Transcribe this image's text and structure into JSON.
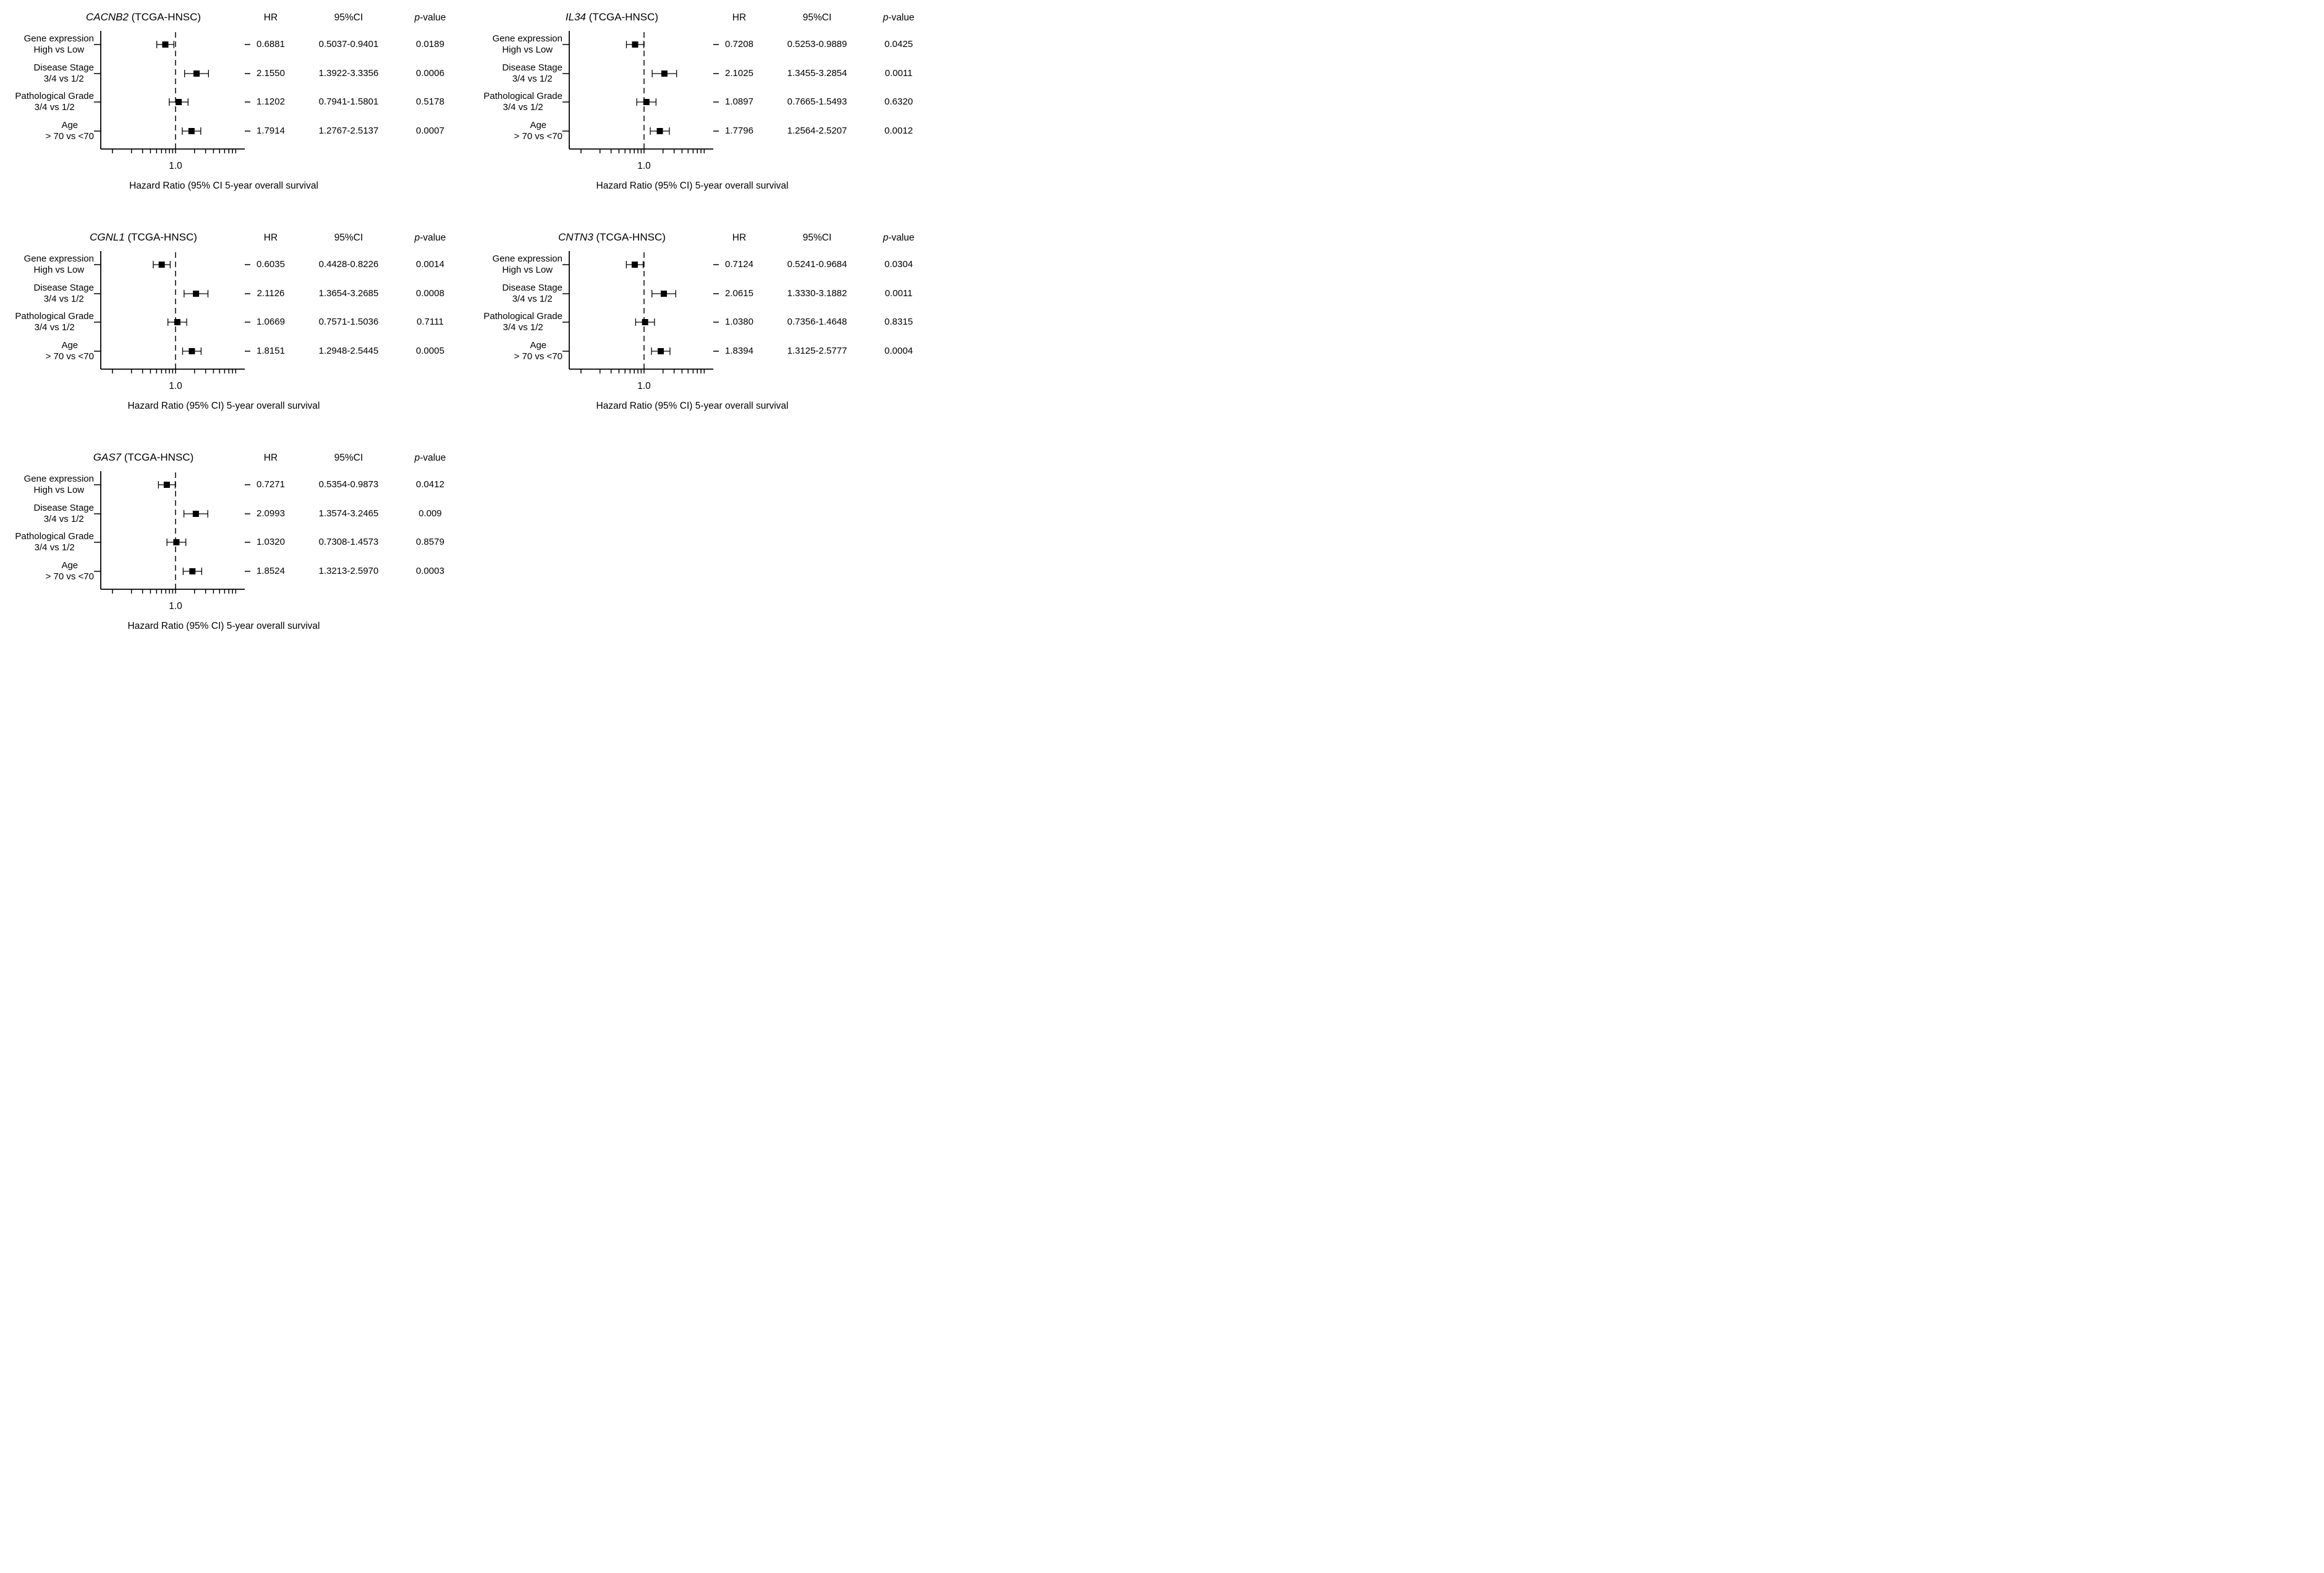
{
  "figure": {
    "background_color": "#ffffff",
    "text_color": "#000000",
    "line_color": "#000000"
  },
  "chart_data": {
    "type": "scatter",
    "subtype": "forest-plot-grid",
    "cohort": "TCGA-HNSC",
    "col_headers": {
      "hr": "HR",
      "ci": "95%CI",
      "p_italic": "p",
      "p_rest": "-value"
    },
    "categories": [
      "Gene expression High vs Low",
      "Disease Stage 3/4 vs 1/2",
      "Pathological Grade 3/4 vs 1/2",
      "Age > 70 vs <70"
    ],
    "categories_lines": [
      [
        "Gene expression",
        "High vs Low"
      ],
      [
        "Disease Stage",
        "3/4 vs 1/2"
      ],
      [
        "Pathological Grade",
        "3/4 vs 1/2"
      ],
      [
        "Age",
        "> 70 vs <70"
      ]
    ],
    "x_axis": {
      "scale": "log",
      "ref_line": 1.0,
      "ref_label": "1.0",
      "minor_ticks": [
        0.1,
        0.2,
        0.3,
        0.4,
        0.5,
        0.6,
        0.7,
        0.8,
        0.9,
        1,
        2,
        3,
        4,
        5,
        6,
        7,
        8,
        9
      ],
      "range_approx": [
        0.065,
        12.5
      ],
      "grid": false
    },
    "panels": [
      {
        "gene": "CACNB2",
        "title_rest": " (TCGA-HNSC)",
        "xlabel": "Hazard Ratio (95% CI 5-year overall survival",
        "grid": {
          "row": 0,
          "col": 0
        },
        "rows": [
          {
            "hr": 0.6881,
            "ci_low": 0.5037,
            "ci_high": 0.9401,
            "hr_text": "0.6881",
            "ci_text": "0.5037-0.9401",
            "p_text": "0.0189"
          },
          {
            "hr": 2.155,
            "ci_low": 1.3922,
            "ci_high": 3.3356,
            "hr_text": "2.1550",
            "ci_text": "1.3922-3.3356",
            "p_text": "0.0006"
          },
          {
            "hr": 1.1202,
            "ci_low": 0.7941,
            "ci_high": 1.5801,
            "hr_text": "1.1202",
            "ci_text": "0.7941-1.5801",
            "p_text": "0.5178"
          },
          {
            "hr": 1.7914,
            "ci_low": 1.2767,
            "ci_high": 2.5137,
            "hr_text": "1.7914",
            "ci_text": "1.2767-2.5137",
            "p_text": "0.0007"
          }
        ]
      },
      {
        "gene": "IL34",
        "title_rest": " (TCGA-HNSC)",
        "xlabel": "Hazard Ratio (95% CI) 5-year overall survival",
        "grid": {
          "row": 0,
          "col": 1
        },
        "rows": [
          {
            "hr": 0.7208,
            "ci_low": 0.5253,
            "ci_high": 0.9889,
            "hr_text": "0.7208",
            "ci_text": "0.5253-0.9889",
            "p_text": "0.0425"
          },
          {
            "hr": 2.1025,
            "ci_low": 1.3455,
            "ci_high": 3.2854,
            "hr_text": "2.1025",
            "ci_text": "1.3455-3.2854",
            "p_text": "0.0011"
          },
          {
            "hr": 1.0897,
            "ci_low": 0.7665,
            "ci_high": 1.5493,
            "hr_text": "1.0897",
            "ci_text": "0.7665-1.5493",
            "p_text": "0.6320"
          },
          {
            "hr": 1.7796,
            "ci_low": 1.2564,
            "ci_high": 2.5207,
            "hr_text": "1.7796",
            "ci_text": "1.2564-2.5207",
            "p_text": "0.0012"
          }
        ]
      },
      {
        "gene": "CGNL1",
        "title_rest": " (TCGA-HNSC)",
        "xlabel": "Hazard Ratio (95% CI) 5-year overall survival",
        "grid": {
          "row": 1,
          "col": 0
        },
        "rows": [
          {
            "hr": 0.6035,
            "ci_low": 0.4428,
            "ci_high": 0.8226,
            "hr_text": "0.6035",
            "ci_text": "0.4428-0.8226",
            "p_text": "0.0014"
          },
          {
            "hr": 2.1126,
            "ci_low": 1.3654,
            "ci_high": 3.2685,
            "hr_text": "2.1126",
            "ci_text": "1.3654-3.2685",
            "p_text": "0.0008"
          },
          {
            "hr": 1.0669,
            "ci_low": 0.7571,
            "ci_high": 1.5036,
            "hr_text": "1.0669",
            "ci_text": "0.7571-1.5036",
            "p_text": "0.7111"
          },
          {
            "hr": 1.8151,
            "ci_low": 1.2948,
            "ci_high": 2.5445,
            "hr_text": "1.8151",
            "ci_text": "1.2948-2.5445",
            "p_text": "0.0005"
          }
        ]
      },
      {
        "gene": "CNTN3",
        "title_rest": " (TCGA-HNSC)",
        "xlabel": "Hazard Ratio (95% CI) 5-year overall survival",
        "grid": {
          "row": 1,
          "col": 1
        },
        "rows": [
          {
            "hr": 0.7124,
            "ci_low": 0.5241,
            "ci_high": 0.9684,
            "hr_text": "0.7124",
            "ci_text": "0.5241-0.9684",
            "p_text": "0.0304"
          },
          {
            "hr": 2.0615,
            "ci_low": 1.333,
            "ci_high": 3.1882,
            "hr_text": "2.0615",
            "ci_text": "1.3330-3.1882",
            "p_text": "0.0011"
          },
          {
            "hr": 1.038,
            "ci_low": 0.7356,
            "ci_high": 1.4648,
            "hr_text": "1.0380",
            "ci_text": "0.7356-1.4648",
            "p_text": "0.8315"
          },
          {
            "hr": 1.8394,
            "ci_low": 1.3125,
            "ci_high": 2.5777,
            "hr_text": "1.8394",
            "ci_text": "1.3125-2.5777",
            "p_text": "0.0004"
          }
        ]
      },
      {
        "gene": "GAS7",
        "title_rest": " (TCGA-HNSC)",
        "xlabel": "Hazard Ratio (95% CI) 5-year overall survival",
        "grid": {
          "row": 2,
          "col": 0
        },
        "rows": [
          {
            "hr": 0.7271,
            "ci_low": 0.5354,
            "ci_high": 0.9873,
            "hr_text": "0.7271",
            "ci_text": "0.5354-0.9873",
            "p_text": "0.0412"
          },
          {
            "hr": 2.0993,
            "ci_low": 1.3574,
            "ci_high": 3.2465,
            "hr_text": "2.0993",
            "ci_text": "1.3574-3.2465",
            "p_text": "0.009"
          },
          {
            "hr": 1.032,
            "ci_low": 0.7308,
            "ci_high": 1.4573,
            "hr_text": "1.0320",
            "ci_text": "0.7308-1.4573",
            "p_text": "0.8579"
          },
          {
            "hr": 1.8524,
            "ci_low": 1.3213,
            "ci_high": 2.597,
            "hr_text": "1.8524",
            "ci_text": "1.3213-2.5970",
            "p_text": "0.0003"
          }
        ]
      }
    ]
  }
}
